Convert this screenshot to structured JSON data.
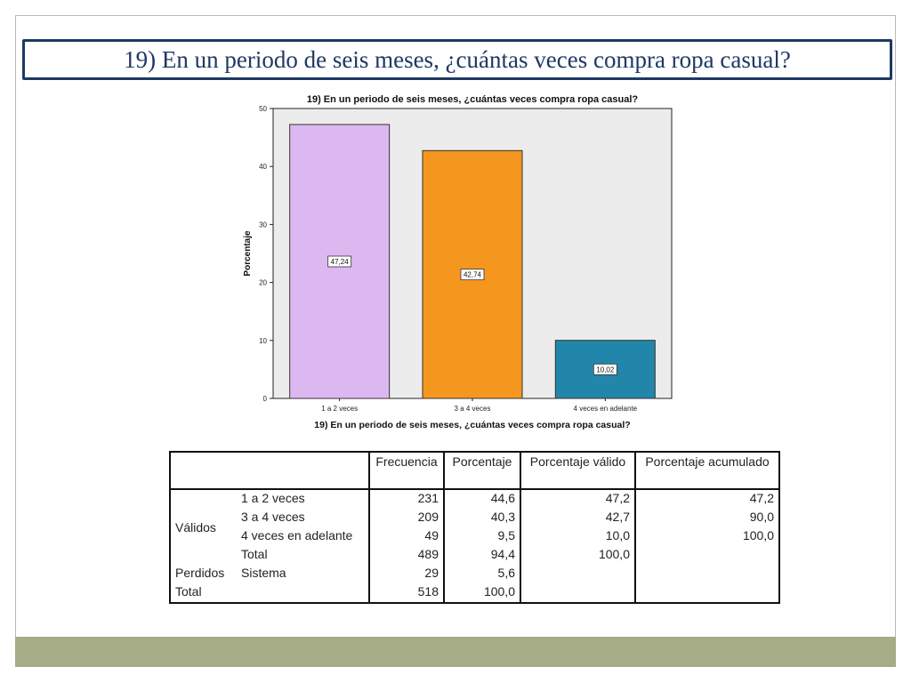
{
  "slide": {
    "title": "19) En un periodo de seis meses, ¿cuántas veces compra ropa casual?",
    "footer_color": "#a5ac86"
  },
  "chart_data": {
    "type": "bar",
    "title": "19) En un periodo de seis meses, ¿cuántas veces compra ropa casual?",
    "xlabel": "19) En un periodo de seis meses, ¿cuántas veces compra ropa casual?",
    "ylabel": "Porcentaje",
    "categories": [
      "1 a 2 veces",
      "3 a 4 veces",
      "4 veces en adelante"
    ],
    "values": [
      47.24,
      42.74,
      10.02
    ],
    "data_labels": [
      "47,24",
      "42,74",
      "10,02"
    ],
    "colors": [
      "#dcb8f0",
      "#f5961e",
      "#2186aa"
    ],
    "ylim": [
      0,
      50
    ],
    "yticks": [
      0,
      10,
      20,
      30,
      40,
      50
    ],
    "grid": false,
    "plot_background": "#ececec"
  },
  "table": {
    "headers": [
      "",
      "",
      "Frecuencia",
      "Porcentaje",
      "Porcentaje válido",
      "Porcentaje acumulado"
    ],
    "rows": [
      {
        "group": "Válidos",
        "label": "1 a 2 veces",
        "freq": "231",
        "pct": "44,6",
        "valid": "47,2",
        "cum": "47,2"
      },
      {
        "group": "",
        "label": "3 a 4 veces",
        "freq": "209",
        "pct": "40,3",
        "valid": "42,7",
        "cum": "90,0"
      },
      {
        "group": "",
        "label": "4 veces en adelante",
        "freq": "49",
        "pct": "9,5",
        "valid": "10,0",
        "cum": "100,0"
      },
      {
        "group": "",
        "label": "Total",
        "freq": "489",
        "pct": "94,4",
        "valid": "100,0",
        "cum": ""
      },
      {
        "group": "Perdidos",
        "label": "Sistema",
        "freq": "29",
        "pct": "5,6",
        "valid": "",
        "cum": ""
      },
      {
        "group": "Total",
        "label": "",
        "freq": "518",
        "pct": "100,0",
        "valid": "",
        "cum": ""
      }
    ]
  }
}
